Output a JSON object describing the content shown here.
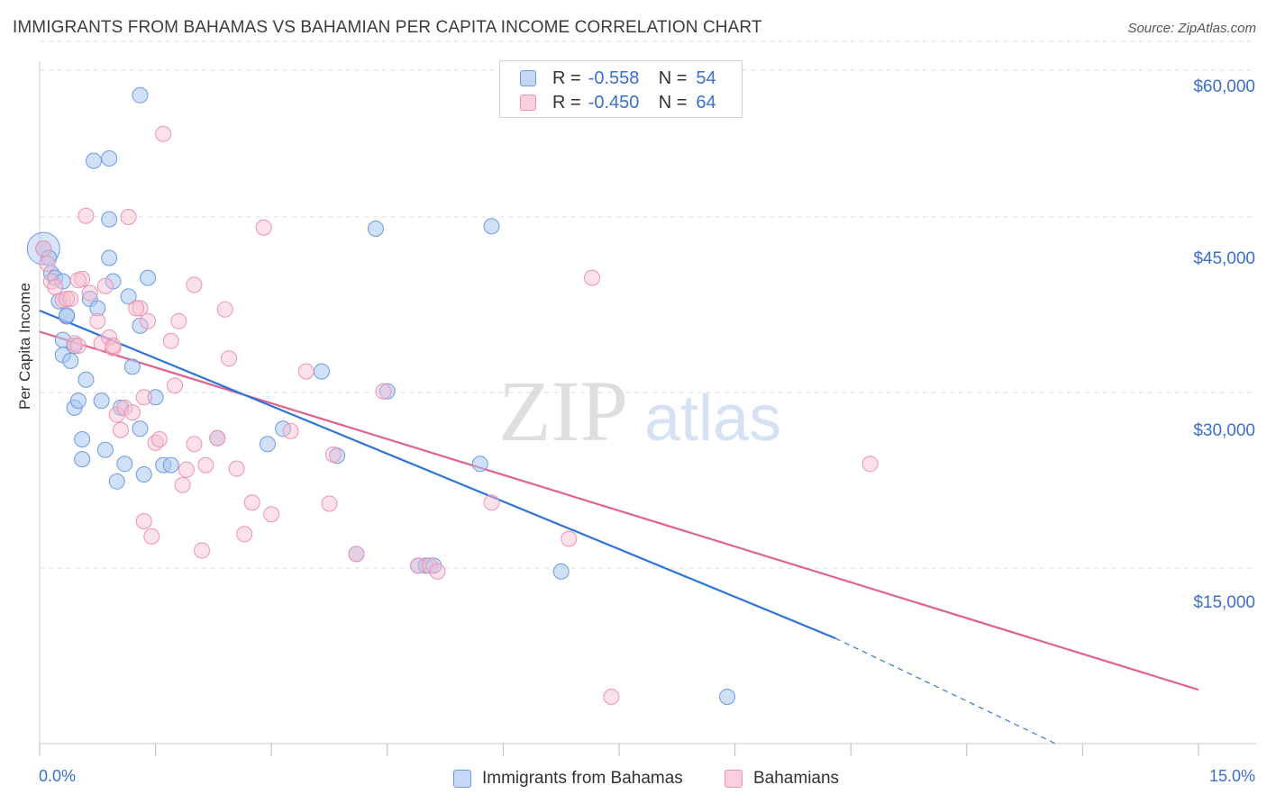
{
  "header": {
    "title": "IMMIGRANTS FROM BAHAMAS VS BAHAMIAN PER CAPITA INCOME CORRELATION CHART",
    "source": "Source: ZipAtlas.com"
  },
  "legend_top": {
    "rows": [
      {
        "r_label": "R =",
        "r_value": "-0.558",
        "n_label": "N =",
        "n_value": "54"
      },
      {
        "r_label": "R =",
        "r_value": "-0.450",
        "n_label": "N =",
        "n_value": "64"
      }
    ]
  },
  "legend_bottom": {
    "items": [
      "Immigrants from Bahamas",
      "Bahamians"
    ]
  },
  "watermark": {
    "zip": "ZIP",
    "atlas": "atlas"
  },
  "colors": {
    "blue_fill": "#a9c6f0",
    "blue_stroke": "#6d9be0",
    "blue_line": "#2e74d6",
    "pink_fill": "#f7bcd0",
    "pink_stroke": "#ee93b2",
    "pink_line": "#e0628f",
    "axis_label": "#3a6fcc"
  },
  "chart_data": {
    "type": "scatter",
    "title": "IMMIGRANTS FROM BAHAMAS VS BAHAMIAN PER CAPITA INCOME CORRELATION CHART",
    "xlabel": "",
    "ylabel": "Per Capita Income",
    "xlim": [
      0,
      15
    ],
    "ylim": [
      0,
      62000
    ],
    "x_tick_labels": [
      "0.0%",
      "15.0%"
    ],
    "y_ticks": [
      15000,
      30000,
      45000,
      60000
    ],
    "y_tick_labels": [
      "$15,000",
      "$30,000",
      "$45,000",
      "$60,000"
    ],
    "grid": true,
    "series": [
      {
        "name": "Immigrants from Bahamas",
        "color": "#a9c6f0",
        "r": -0.558,
        "n": 54,
        "points": [
          [
            0.05,
            42300
          ],
          [
            0.12,
            41500
          ],
          [
            0.15,
            40200
          ],
          [
            0.2,
            39800
          ],
          [
            0.25,
            37800
          ],
          [
            0.3,
            39500
          ],
          [
            0.35,
            36500
          ],
          [
            0.3,
            34500
          ],
          [
            0.3,
            33200
          ],
          [
            0.4,
            32700
          ],
          [
            0.45,
            34000
          ],
          [
            0.45,
            28700
          ],
          [
            0.5,
            29300
          ],
          [
            0.55,
            26000
          ],
          [
            0.55,
            24300
          ],
          [
            0.65,
            38000
          ],
          [
            0.75,
            37200
          ],
          [
            0.7,
            49800
          ],
          [
            0.8,
            29300
          ],
          [
            0.85,
            25100
          ],
          [
            0.9,
            44800
          ],
          [
            0.9,
            41500
          ],
          [
            0.95,
            39500
          ],
          [
            0.9,
            50000
          ],
          [
            1.0,
            22400
          ],
          [
            1.05,
            28700
          ],
          [
            1.1,
            23900
          ],
          [
            1.15,
            38200
          ],
          [
            1.2,
            32200
          ],
          [
            1.3,
            35700
          ],
          [
            1.3,
            55400
          ],
          [
            1.3,
            26900
          ],
          [
            1.35,
            23000
          ],
          [
            1.4,
            39800
          ],
          [
            1.5,
            29600
          ],
          [
            1.6,
            23800
          ],
          [
            1.7,
            23800
          ],
          [
            2.3,
            26100
          ],
          [
            2.95,
            25600
          ],
          [
            3.15,
            26900
          ],
          [
            3.65,
            31800
          ],
          [
            3.85,
            24600
          ],
          [
            4.1,
            16200
          ],
          [
            4.5,
            30100
          ],
          [
            4.35,
            44000
          ],
          [
            4.9,
            15200
          ],
          [
            5.0,
            15200
          ],
          [
            5.1,
            15200
          ],
          [
            5.7,
            23900
          ],
          [
            5.85,
            44200
          ],
          [
            6.75,
            14700
          ],
          [
            8.9,
            4000
          ],
          [
            0.6,
            31100
          ],
          [
            0.35,
            36600
          ]
        ],
        "trend": {
          "x": [
            0,
            10.3
          ],
          "y": [
            37000,
            9000
          ],
          "dash_to": {
            "x": 13.15,
            "y": 0
          }
        }
      },
      {
        "name": "Bahamians",
        "color": "#f7bcd0",
        "r": -0.45,
        "n": 64,
        "points": [
          [
            0.05,
            42300
          ],
          [
            0.1,
            41000
          ],
          [
            0.15,
            39500
          ],
          [
            0.2,
            39000
          ],
          [
            0.3,
            37900
          ],
          [
            0.4,
            38000
          ],
          [
            0.45,
            34200
          ],
          [
            0.5,
            34000
          ],
          [
            0.55,
            39700
          ],
          [
            0.6,
            45100
          ],
          [
            0.65,
            38500
          ],
          [
            0.75,
            36100
          ],
          [
            0.8,
            34200
          ],
          [
            0.85,
            39100
          ],
          [
            0.9,
            34700
          ],
          [
            0.95,
            33800
          ],
          [
            1.0,
            28100
          ],
          [
            1.05,
            26800
          ],
          [
            1.1,
            28700
          ],
          [
            1.15,
            45000
          ],
          [
            1.2,
            28300
          ],
          [
            1.3,
            37200
          ],
          [
            1.35,
            29600
          ],
          [
            1.4,
            36100
          ],
          [
            1.35,
            19000
          ],
          [
            1.45,
            17700
          ],
          [
            1.5,
            25700
          ],
          [
            1.55,
            26000
          ],
          [
            1.6,
            52100
          ],
          [
            1.7,
            34400
          ],
          [
            1.75,
            30600
          ],
          [
            1.8,
            36100
          ],
          [
            1.85,
            22100
          ],
          [
            1.9,
            23400
          ],
          [
            2.0,
            25600
          ],
          [
            2.0,
            39200
          ],
          [
            2.1,
            16500
          ],
          [
            2.15,
            23800
          ],
          [
            2.3,
            26100
          ],
          [
            2.4,
            37100
          ],
          [
            2.45,
            32900
          ],
          [
            2.55,
            23500
          ],
          [
            2.65,
            17900
          ],
          [
            2.75,
            20600
          ],
          [
            2.9,
            44100
          ],
          [
            3.0,
            19600
          ],
          [
            3.25,
            26700
          ],
          [
            3.45,
            31800
          ],
          [
            3.75,
            20500
          ],
          [
            3.8,
            24700
          ],
          [
            4.1,
            16200
          ],
          [
            4.45,
            30100
          ],
          [
            4.9,
            15200
          ],
          [
            5.05,
            15200
          ],
          [
            5.15,
            14700
          ],
          [
            5.85,
            20600
          ],
          [
            6.85,
            17500
          ],
          [
            7.15,
            39800
          ],
          [
            10.75,
            23900
          ],
          [
            7.4,
            4000
          ],
          [
            0.35,
            38000
          ],
          [
            0.5,
            39600
          ],
          [
            1.25,
            37200
          ],
          [
            0.95,
            34000
          ]
        ],
        "trend": {
          "x": [
            0,
            15
          ],
          "y": [
            35200,
            4600
          ]
        }
      }
    ]
  }
}
